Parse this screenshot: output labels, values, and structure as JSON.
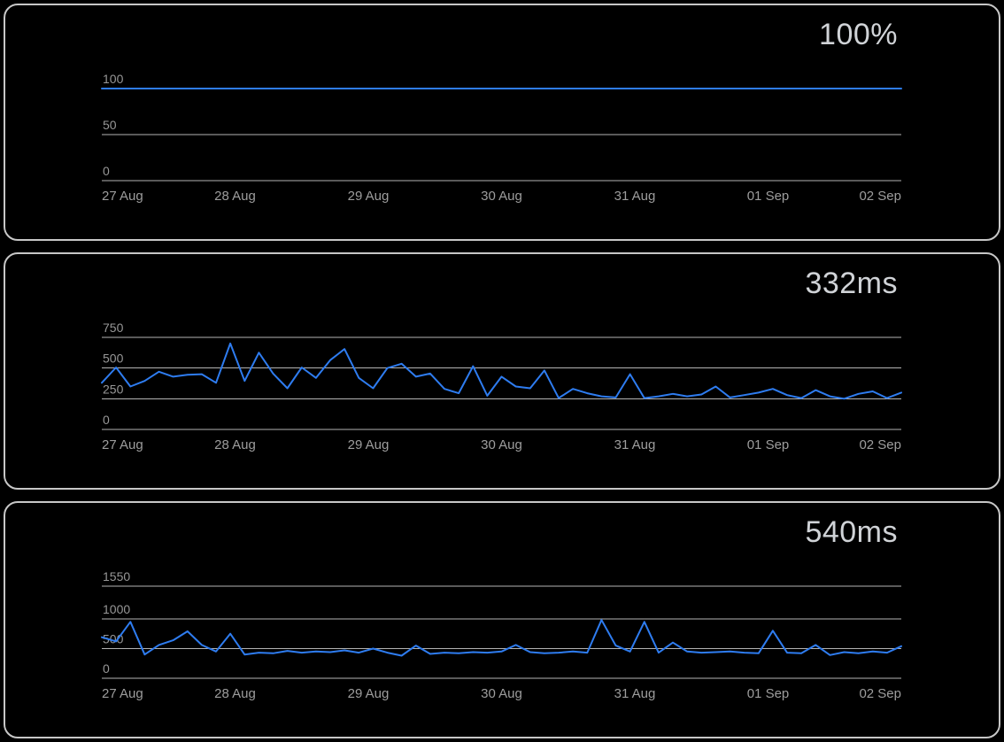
{
  "chart_data": [
    {
      "type": "line",
      "headline": "100%",
      "title": "",
      "xlabel": "",
      "ylabel": "",
      "grid": true,
      "legend": "none",
      "ylim": [
        0,
        100
      ],
      "yticks": [
        0,
        50,
        100
      ],
      "x_labels": [
        "27 Aug",
        "28 Aug",
        "29 Aug",
        "30 Aug",
        "31 Aug",
        "01 Sep",
        "02 Sep"
      ],
      "line_color": "#2e7cf0",
      "series": [
        {
          "name": "uptime-percent",
          "values": [
            100,
            100,
            100,
            100,
            100,
            100,
            100,
            100,
            100,
            100,
            100,
            100,
            100,
            100,
            100,
            100,
            100,
            100,
            100,
            100,
            100,
            100,
            100,
            100,
            100,
            100,
            100,
            100,
            100,
            100,
            100,
            100,
            100,
            100,
            100,
            100,
            100,
            100,
            100,
            100,
            100,
            100,
            100,
            100,
            100,
            100,
            100,
            100,
            100,
            100,
            100,
            100,
            100,
            100,
            100,
            100,
            100
          ]
        }
      ]
    },
    {
      "type": "line",
      "headline": "332ms",
      "title": "",
      "xlabel": "",
      "ylabel": "",
      "grid": true,
      "legend": "none",
      "ylim": [
        0,
        750
      ],
      "yticks": [
        0,
        250,
        500,
        750
      ],
      "x_labels": [
        "27 Aug",
        "28 Aug",
        "29 Aug",
        "30 Aug",
        "31 Aug",
        "01 Sep",
        "02 Sep"
      ],
      "line_color": "#2e7cf0",
      "series": [
        {
          "name": "response-time-ms",
          "values": [
            380,
            505,
            350,
            395,
            470,
            430,
            445,
            450,
            380,
            700,
            395,
            625,
            455,
            335,
            505,
            420,
            565,
            655,
            420,
            335,
            500,
            535,
            430,
            455,
            330,
            295,
            515,
            275,
            430,
            350,
            335,
            480,
            255,
            330,
            295,
            270,
            260,
            450,
            255,
            270,
            290,
            270,
            285,
            350,
            260,
            280,
            300,
            330,
            280,
            255,
            320,
            270,
            250,
            290,
            310,
            255,
            300
          ]
        }
      ]
    },
    {
      "type": "line",
      "headline": "540ms",
      "title": "",
      "xlabel": "",
      "ylabel": "",
      "grid": true,
      "legend": "none",
      "ylim": [
        0,
        1550
      ],
      "yticks": [
        0,
        500,
        1000,
        1550
      ],
      "x_labels": [
        "27 Aug",
        "28 Aug",
        "29 Aug",
        "30 Aug",
        "31 Aug",
        "01 Sep",
        "02 Sep"
      ],
      "line_color": "#2e7cf0",
      "series": [
        {
          "name": "response-time-ms",
          "values": [
            690,
            620,
            950,
            400,
            560,
            640,
            790,
            560,
            450,
            750,
            400,
            430,
            420,
            460,
            430,
            450,
            440,
            470,
            430,
            500,
            430,
            380,
            550,
            410,
            430,
            420,
            440,
            430,
            450,
            560,
            440,
            420,
            430,
            450,
            430,
            980,
            550,
            450,
            950,
            430,
            600,
            450,
            430,
            440,
            450,
            430,
            420,
            800,
            430,
            420,
            560,
            390,
            440,
            420,
            450,
            430,
            540
          ]
        }
      ]
    }
  ]
}
